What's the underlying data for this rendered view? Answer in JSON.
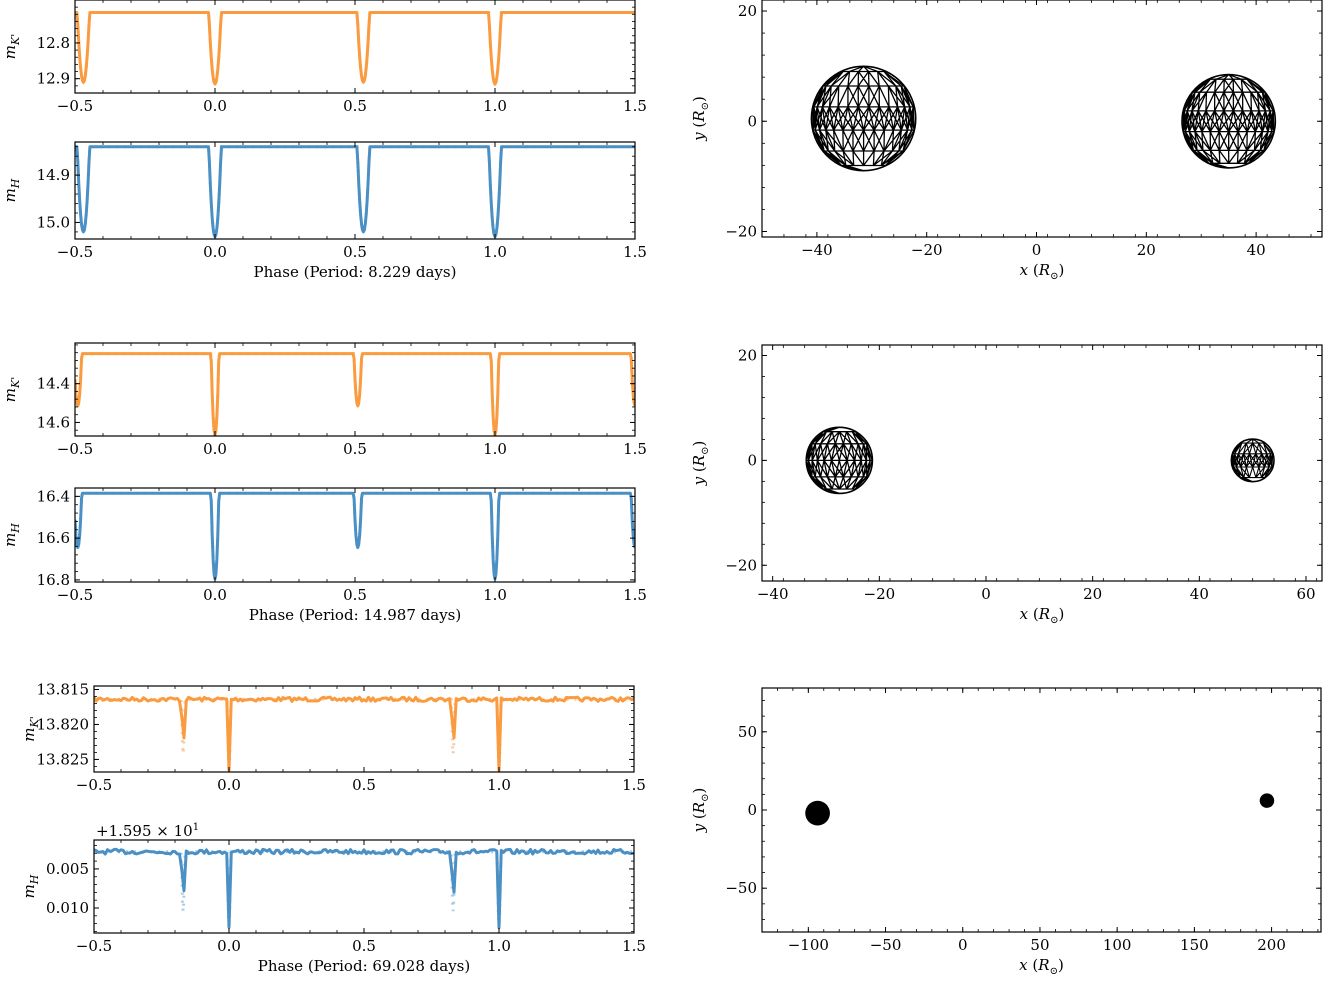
{
  "colors": {
    "kband": "#f99b3e",
    "hband": "#4a90c4",
    "model_k": "#f8c9a0",
    "model_h": "#a9cbe4",
    "mesh": "#000000"
  },
  "chart_data": [
    {
      "type": "line",
      "panel": "row1-K",
      "ylabel": "m_K'",
      "xlabel": "",
      "xlim": [
        -0.5,
        1.5
      ],
      "ylim": [
        12.94,
        12.68
      ],
      "yticks": [
        12.8,
        12.9
      ],
      "ytick_labels": [
        "12.8",
        "12.9"
      ],
      "xticks": [
        -0.5,
        0.0,
        0.5,
        1.0,
        1.5
      ],
      "xtick_labels": [
        "−0.5",
        "0.0",
        "0.5",
        "1.0",
        "1.5"
      ],
      "baseline": 12.715,
      "eclipse_width": 0.022,
      "noise": 0,
      "eclipses": [
        {
          "phase": -0.47,
          "depth": 0.195
        },
        {
          "phase": 0.0,
          "depth": 0.2
        },
        {
          "phase": 0.53,
          "depth": 0.195
        },
        {
          "phase": 1.0,
          "depth": 0.2
        }
      ],
      "series": [
        {
          "name": "",
          "values": []
        }
      ]
    },
    {
      "type": "line",
      "panel": "row1-H",
      "ylabel": "m_H",
      "xlabel": "Phase (Period: 8.229 days)",
      "xlim": [
        -0.5,
        1.5
      ],
      "ylim": [
        15.035,
        14.83
      ],
      "yticks": [
        14.9,
        15.0
      ],
      "ytick_labels": [
        "14.9",
        "15.0"
      ],
      "xticks": [
        -0.5,
        0.0,
        0.5,
        1.0,
        1.5
      ],
      "xtick_labels": [
        "−0.5",
        "0.0",
        "0.5",
        "1.0",
        "1.5"
      ],
      "baseline": 14.84,
      "eclipse_width": 0.022,
      "noise": 0,
      "eclipses": [
        {
          "phase": -0.47,
          "depth": 0.18
        },
        {
          "phase": 0.0,
          "depth": 0.19
        },
        {
          "phase": 0.53,
          "depth": 0.18
        },
        {
          "phase": 1.0,
          "depth": 0.19
        }
      ]
    },
    {
      "type": "line",
      "panel": "row2-K",
      "ylabel": "m_K'",
      "xlabel": "",
      "xlim": [
        -0.5,
        1.5
      ],
      "ylim": [
        14.67,
        14.19
      ],
      "yticks": [
        14.4,
        14.6
      ],
      "ytick_labels": [
        "14.4",
        "14.6"
      ],
      "xticks": [
        -0.5,
        0.0,
        0.5,
        1.0,
        1.5
      ],
      "xtick_labels": [
        "−0.5",
        "0.0",
        "0.5",
        "1.0",
        "1.5"
      ],
      "baseline": 14.245,
      "eclipse_width": 0.014,
      "noise": 0,
      "eclipses": [
        {
          "phase": -0.49,
          "depth": 0.27
        },
        {
          "phase": 0.0,
          "depth": 0.42
        },
        {
          "phase": 0.51,
          "depth": 0.27
        },
        {
          "phase": 1.0,
          "depth": 0.42
        },
        {
          "phase": 1.5,
          "depth": 0.27
        }
      ]
    },
    {
      "type": "line",
      "panel": "row2-H",
      "ylabel": "m_H",
      "xlabel": "Phase (Period: 14.987 days)",
      "xlim": [
        -0.5,
        1.5
      ],
      "ylim": [
        16.81,
        16.36
      ],
      "yticks": [
        16.4,
        16.6,
        16.8
      ],
      "ytick_labels": [
        "16.4",
        "16.6",
        "16.8"
      ],
      "xticks": [
        -0.5,
        0.0,
        0.5,
        1.0,
        1.5
      ],
      "xtick_labels": [
        "−0.5",
        "0.0",
        "0.5",
        "1.0",
        "1.5"
      ],
      "baseline": 16.385,
      "eclipse_width": 0.014,
      "noise": 0,
      "eclipses": [
        {
          "phase": -0.49,
          "depth": 0.26
        },
        {
          "phase": 0.0,
          "depth": 0.41
        },
        {
          "phase": 0.51,
          "depth": 0.26
        },
        {
          "phase": 1.0,
          "depth": 0.41
        },
        {
          "phase": 1.5,
          "depth": 0.26
        }
      ]
    },
    {
      "type": "line",
      "panel": "row3-K",
      "ylabel": "m_K'",
      "xlabel": "",
      "xlim": [
        -0.5,
        1.5
      ],
      "ylim": [
        13.8268,
        13.8145
      ],
      "yticks": [
        13.815,
        13.82,
        13.825
      ],
      "ytick_labels": [
        "13.815",
        "13.820",
        "13.825"
      ],
      "xticks": [
        -0.5,
        0.0,
        0.5,
        1.0,
        1.5
      ],
      "xtick_labels": [
        "−0.5",
        "0.0",
        "0.5",
        "1.0",
        "1.5"
      ],
      "baseline": 13.8164,
      "eclipse_width": 0.006,
      "noise": 0.0006,
      "eclipses": [
        {
          "phase": -0.17,
          "depth": 0.0078
        },
        {
          "phase": 0.0,
          "depth": 0.0102
        },
        {
          "phase": 0.83,
          "depth": 0.0078
        },
        {
          "phase": 1.0,
          "depth": 0.0102
        }
      ]
    },
    {
      "type": "line",
      "panel": "row3-H",
      "ylabel": "m_H",
      "xlabel": "Phase (Period: 69.028 days)",
      "offset_text": "+1.595 × 10",
      "offset_exp": "1",
      "xlim": [
        -0.5,
        1.5
      ],
      "ylim": [
        0.0132,
        0.0013
      ],
      "yticks": [
        0.005,
        0.01
      ],
      "ytick_labels": [
        "0.005",
        "0.010"
      ],
      "xticks": [
        -0.5,
        0.0,
        0.5,
        1.0,
        1.5
      ],
      "xtick_labels": [
        "−0.5",
        "0.0",
        "0.5",
        "1.0",
        "1.5"
      ],
      "baseline": 0.0028,
      "eclipse_width": 0.006,
      "noise": 0.0006,
      "eclipses": [
        {
          "phase": -0.17,
          "depth": 0.0076
        },
        {
          "phase": 0.0,
          "depth": 0.0098
        },
        {
          "phase": 0.83,
          "depth": 0.0076
        },
        {
          "phase": 1.0,
          "depth": 0.0098
        }
      ]
    },
    {
      "type": "scatter",
      "panel": "row1-mesh",
      "xlabel": "x (R⊙)",
      "ylabel": "y (R⊙)",
      "xlim": [
        -50,
        52
      ],
      "ylim": [
        -21,
        22
      ],
      "xticks": [
        -40,
        -20,
        0,
        20,
        40
      ],
      "xtick_labels": [
        "−40",
        "−20",
        "0",
        "20",
        "40"
      ],
      "yticks": [
        -20,
        0,
        20
      ],
      "ytick_labels": [
        "−20",
        "0",
        "20"
      ],
      "stars": [
        {
          "x": -31.5,
          "y": 0.5,
          "r": 9.5,
          "mesh_rings": 7
        },
        {
          "x": 35,
          "y": 0,
          "r": 8.5,
          "mesh_rings": 7
        }
      ]
    },
    {
      "type": "scatter",
      "panel": "row2-mesh",
      "xlabel": "x (R⊙)",
      "ylabel": "y (R⊙)",
      "xlim": [
        -42,
        63
      ],
      "ylim": [
        -23,
        22
      ],
      "xticks": [
        -40,
        -20,
        0,
        20,
        40,
        60
      ],
      "xtick_labels": [
        "−40",
        "−20",
        "0",
        "20",
        "40",
        "60"
      ],
      "yticks": [
        -20,
        0,
        20
      ],
      "ytick_labels": [
        "−20",
        "0",
        "20"
      ],
      "stars": [
        {
          "x": -27.5,
          "y": 0,
          "r": 6.2,
          "mesh_rings": 7
        },
        {
          "x": 50,
          "y": 0,
          "r": 4,
          "mesh_rings": 7
        }
      ]
    },
    {
      "type": "scatter",
      "panel": "row3-mesh",
      "xlabel": "x (R⊙)",
      "ylabel": "y (R⊙)",
      "xlim": [
        -130,
        232
      ],
      "ylim": [
        -78,
        78
      ],
      "xticks": [
        -100,
        -50,
        0,
        50,
        100,
        150,
        200
      ],
      "xtick_labels": [
        "−100",
        "−50",
        "0",
        "50",
        "100",
        "150",
        "200"
      ],
      "yticks": [
        -50,
        0,
        50
      ],
      "ytick_labels": [
        "−50",
        "0",
        "50"
      ],
      "stars": [
        {
          "x": -94,
          "y": -2,
          "r": 8,
          "mesh_rings": 0
        },
        {
          "x": 197,
          "y": 6,
          "r": 4.7,
          "mesh_rings": 0
        }
      ]
    }
  ]
}
